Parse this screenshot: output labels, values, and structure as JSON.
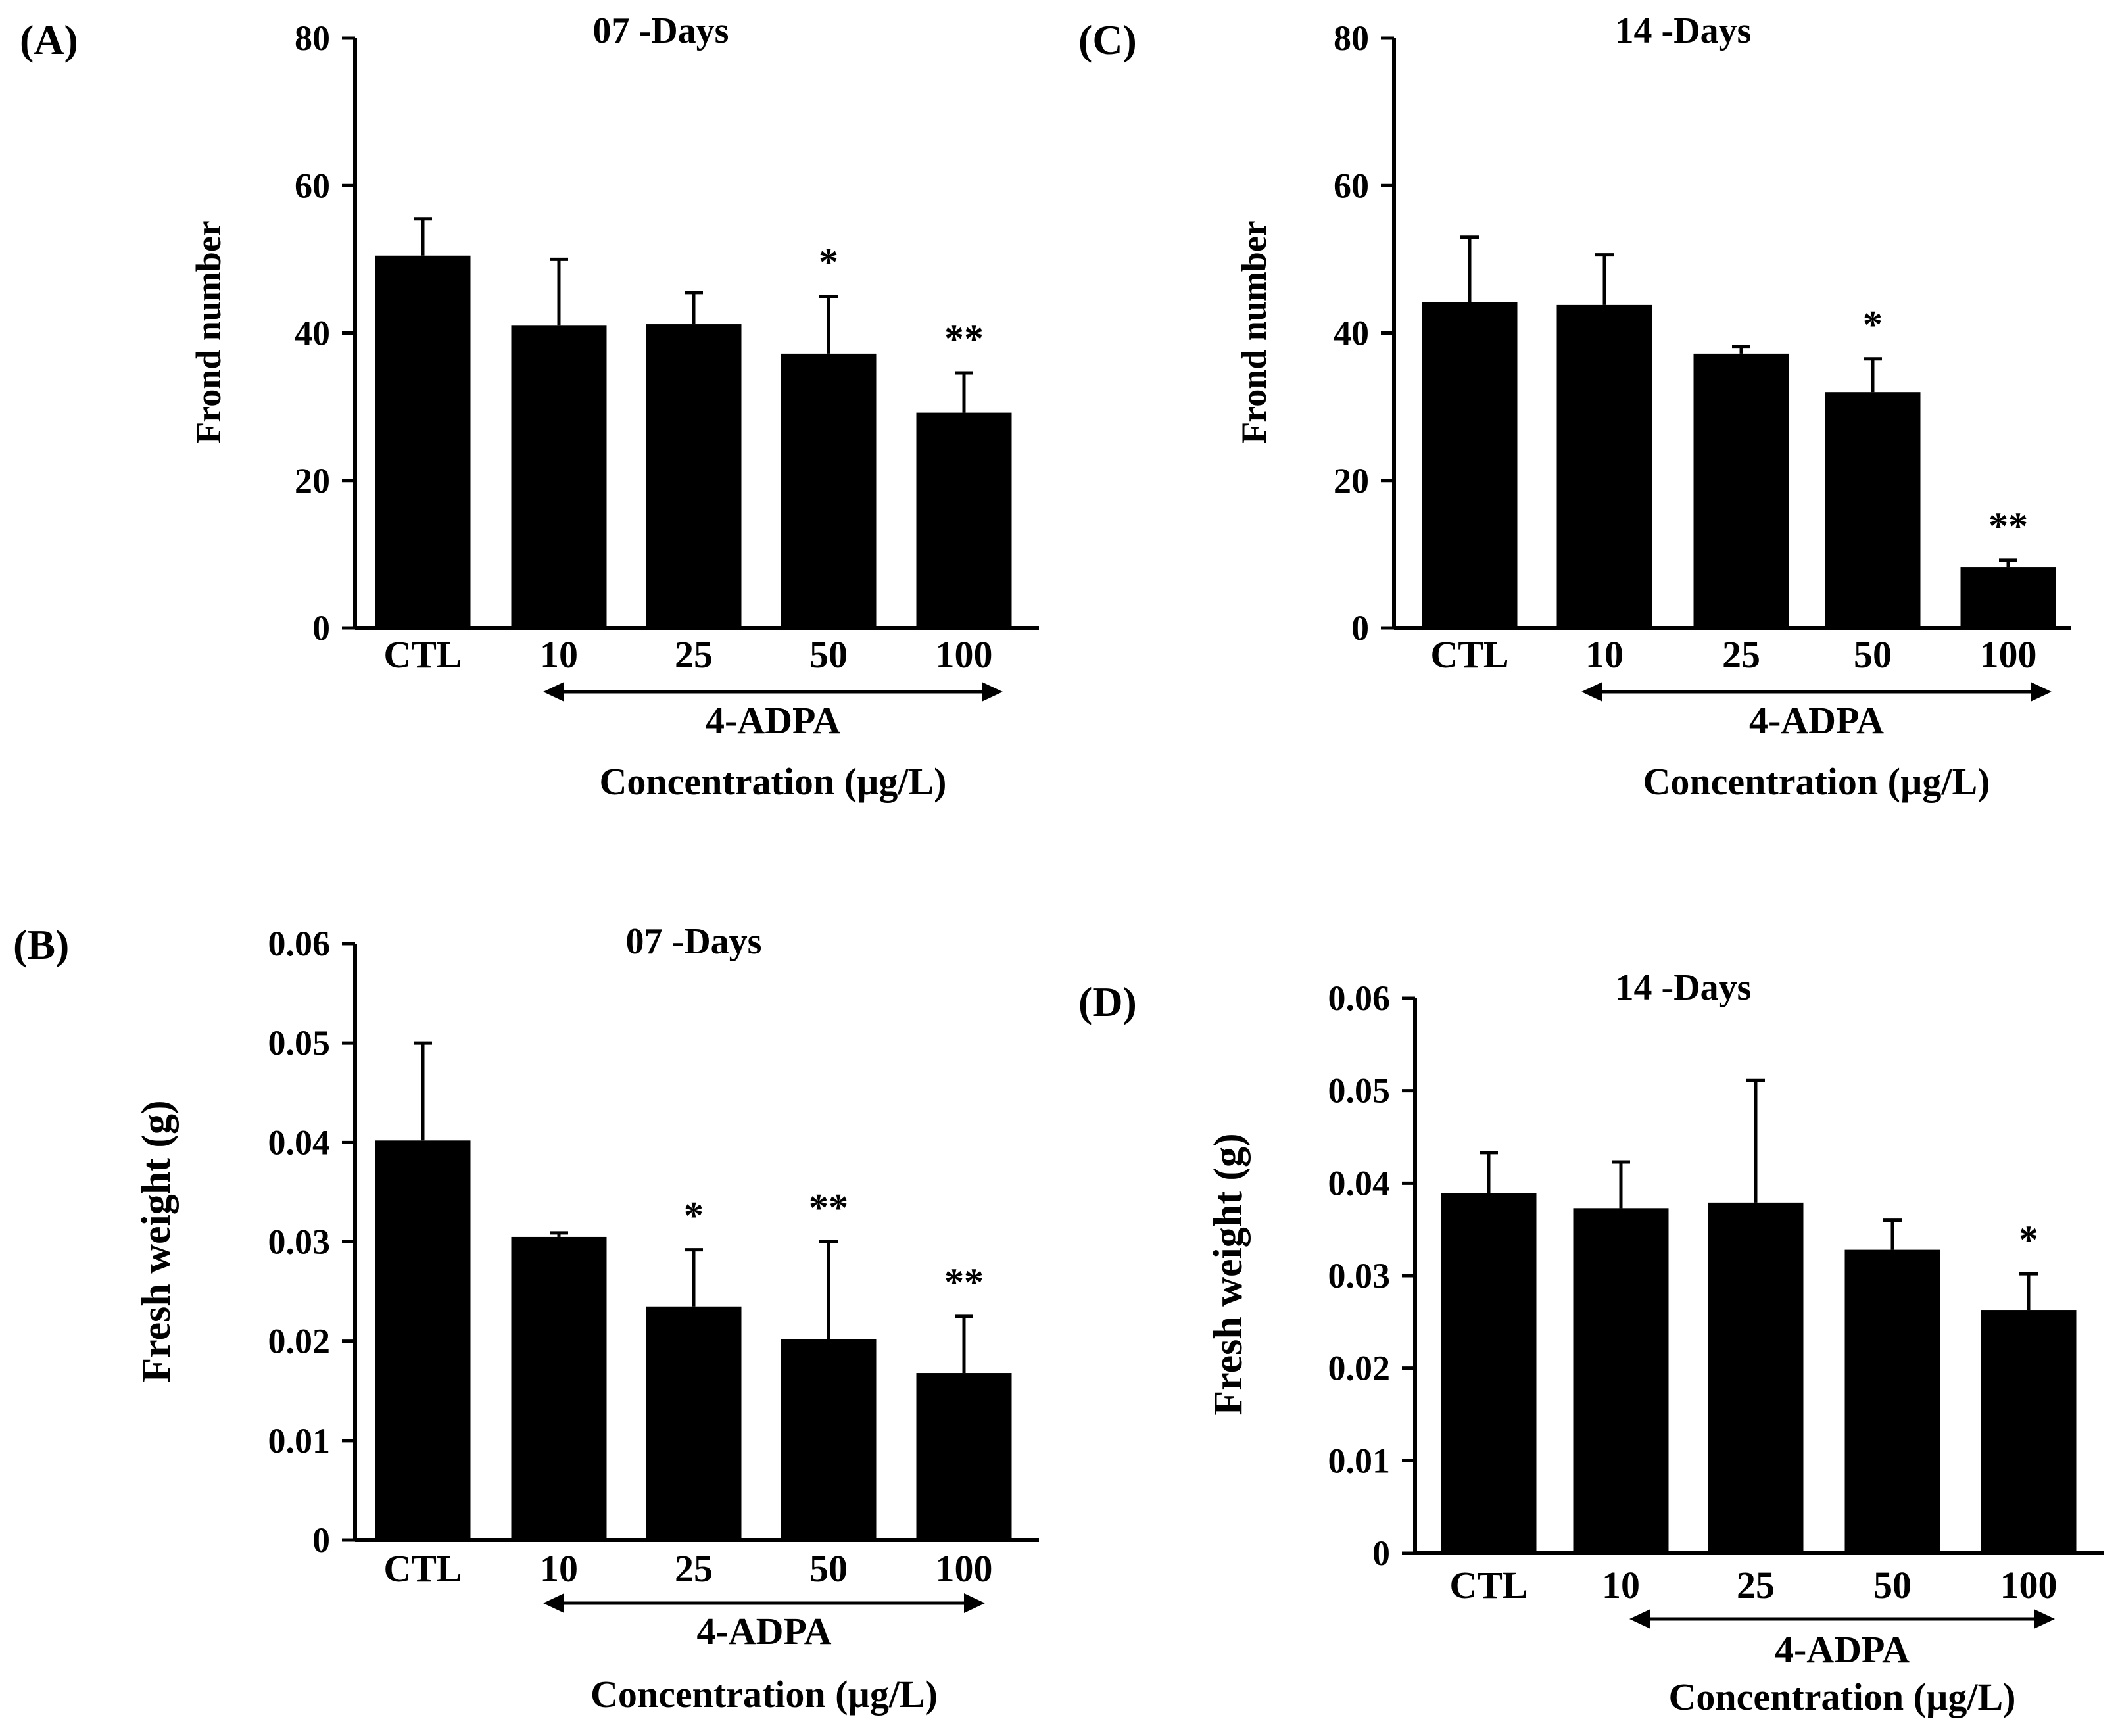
{
  "figure": {
    "group_label": "4-ADPA",
    "x_title": "Concentration (µg/L)"
  },
  "chart_data": [
    {
      "type": "bar",
      "panel": "(A)",
      "title": "07 -Days",
      "ylabel": "Frond number",
      "xlabel": "Concentration (µg/L)",
      "group_label": "4-ADPA",
      "categories": [
        "CTL",
        "10",
        "25",
        "50",
        "100"
      ],
      "values": [
        50.5,
        41,
        41.2,
        37.2,
        29.2
      ],
      "errors": [
        5,
        9,
        4.3,
        7.8,
        5.4
      ],
      "significance": [
        "",
        "",
        "",
        "*",
        "**"
      ],
      "ylim": [
        0,
        80
      ],
      "yticks": [
        0,
        20,
        40,
        60,
        80
      ],
      "ytick_labels": [
        "0",
        "20",
        "40",
        "60",
        "80"
      ]
    },
    {
      "type": "bar",
      "panel": "(B)",
      "title": "07 -Days",
      "ylabel": "Fresh weight (g)",
      "xlabel": "Concentration (µg/L)",
      "group_label": "4-ADPA",
      "categories": [
        "CTL",
        "10",
        "25",
        "50",
        "100"
      ],
      "values": [
        0.0402,
        0.0305,
        0.0235,
        0.0202,
        0.0168
      ],
      "errors": [
        0.0098,
        0.0004,
        0.0057,
        0.0098,
        0.0057
      ],
      "significance": [
        "",
        "",
        "*",
        "**",
        "**"
      ],
      "ylim": [
        0,
        0.06
      ],
      "yticks": [
        0,
        0.01,
        0.02,
        0.03,
        0.04,
        0.05,
        0.06
      ],
      "ytick_labels": [
        "0",
        "0.01",
        "0.02",
        "0.03",
        "0.04",
        "0.05",
        "0.06"
      ]
    },
    {
      "type": "bar",
      "panel": "(C)",
      "title": "14 -Days",
      "ylabel": "Frond number",
      "xlabel": "Concentration (µg/L)",
      "group_label": "4-ADPA",
      "categories": [
        "CTL",
        "10",
        "25",
        "50",
        "100"
      ],
      "values": [
        44.2,
        43.8,
        37.2,
        32,
        8.2
      ],
      "errors": [
        8.8,
        6.8,
        1,
        4.5,
        1
      ],
      "significance": [
        "",
        "",
        "",
        "*",
        "**"
      ],
      "ylim": [
        0,
        80
      ],
      "yticks": [
        0,
        20,
        40,
        60,
        80
      ],
      "ytick_labels": [
        "0",
        "20",
        "40",
        "60",
        "80"
      ]
    },
    {
      "type": "bar",
      "panel": "(D)",
      "title": "14 -Days",
      "ylabel": "Fresh weight (g)",
      "xlabel": "Concentration (µg/L)",
      "group_label": "4-ADPA",
      "categories": [
        "CTL",
        "10",
        "25",
        "50",
        "100"
      ],
      "values": [
        0.0389,
        0.0373,
        0.0379,
        0.0328,
        0.0263
      ],
      "errors": [
        0.0044,
        0.005,
        0.0132,
        0.0032,
        0.0039
      ],
      "significance": [
        "",
        "",
        "",
        "",
        "*"
      ],
      "ylim": [
        0,
        0.06
      ],
      "yticks": [
        0,
        0.01,
        0.02,
        0.03,
        0.04,
        0.05,
        0.06
      ],
      "ytick_labels": [
        "0",
        "0.01",
        "0.02",
        "0.03",
        "0.04",
        "0.05",
        "0.06"
      ]
    }
  ]
}
